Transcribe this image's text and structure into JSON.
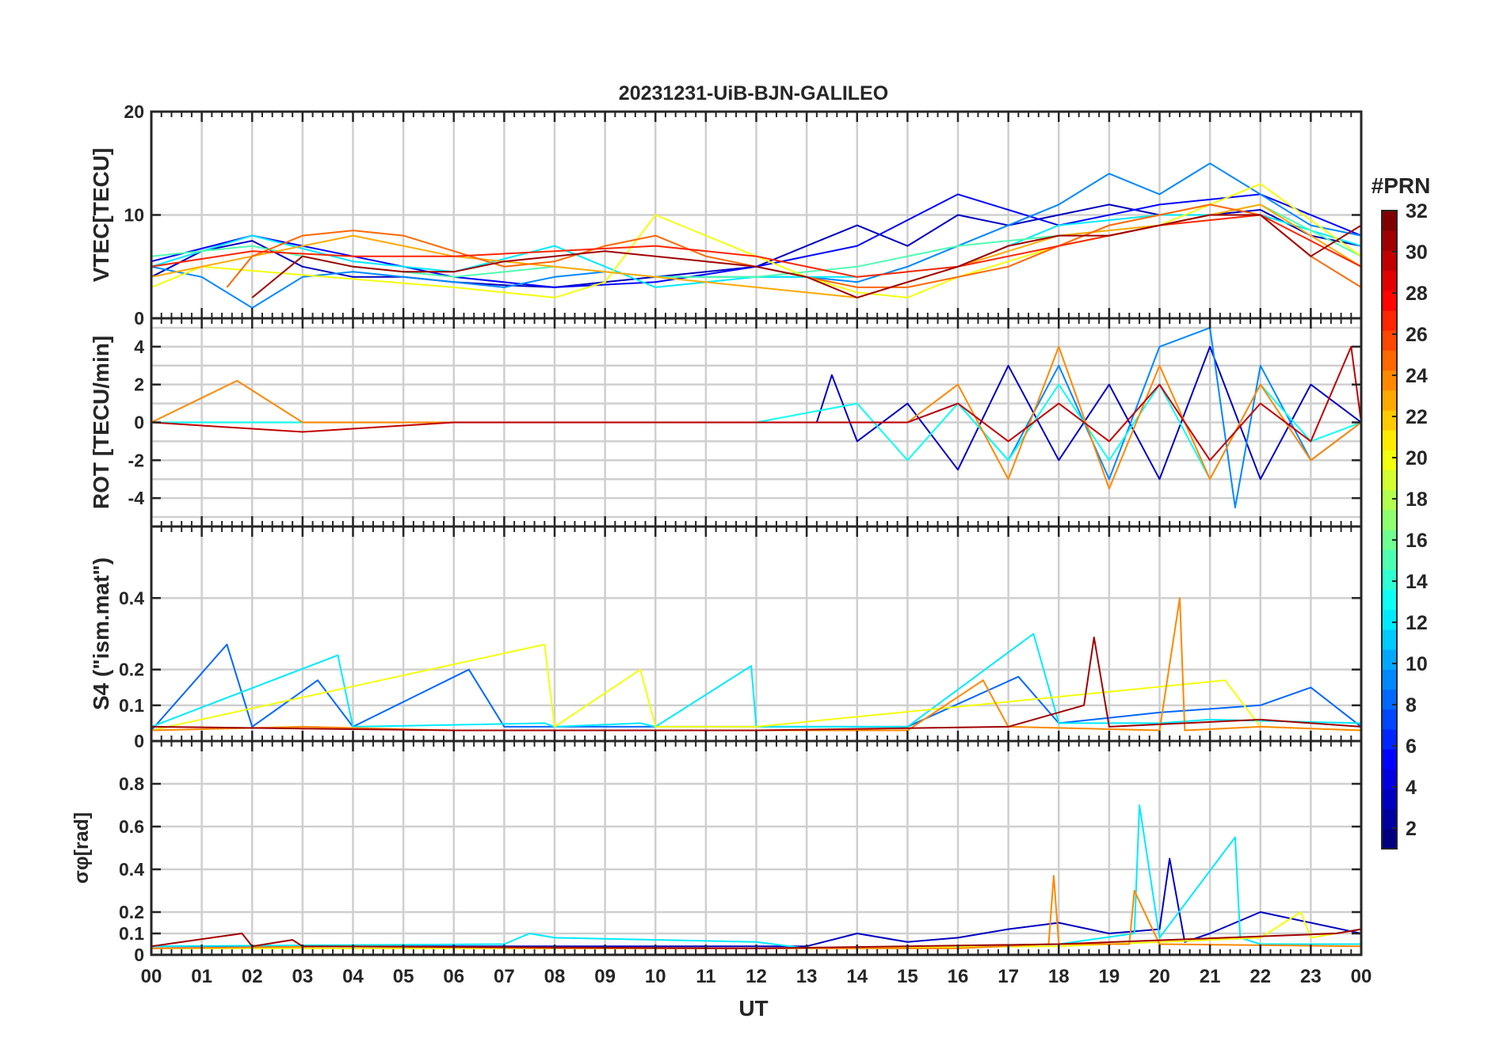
{
  "chart_data": {
    "type": "line",
    "title": "20231231-UiB-BJN-GALILEO",
    "xlabel": "UT",
    "x_ticks": [
      "00",
      "01",
      "02",
      "03",
      "04",
      "05",
      "06",
      "07",
      "08",
      "09",
      "10",
      "11",
      "12",
      "13",
      "14",
      "15",
      "16",
      "17",
      "18",
      "19",
      "20",
      "21",
      "22",
      "23",
      "00"
    ],
    "xlim": [
      0,
      24
    ],
    "grid": true,
    "colorbar": {
      "label": "#PRN",
      "range": [
        1,
        32
      ],
      "ticks": [
        "2",
        "4",
        "6",
        "8",
        "10",
        "12",
        "14",
        "16",
        "18",
        "20",
        "22",
        "24",
        "26",
        "28",
        "30",
        "32"
      ],
      "colormap": "jet",
      "levels": 32
    },
    "panels": [
      {
        "ylabel": "VTEC[TECU]",
        "ylim": [
          0,
          20
        ],
        "y_ticks": [
          "0",
          "10",
          "20"
        ],
        "y_tick_values": [
          0,
          10,
          20
        ],
        "series": [
          {
            "prn": 3,
            "x": [
              0,
              1,
              2,
              3,
              4,
              5,
              6,
              7,
              8,
              9,
              10,
              11,
              12,
              13,
              14,
              15,
              16,
              17,
              18,
              19,
              20,
              21,
              22,
              23,
              24
            ],
            "y": [
              4,
              6.5,
              7.5,
              5,
              4,
              4,
              3.5,
              3.2,
              3,
              3.5,
              4,
              4.5,
              5,
              7,
              9,
              7,
              10,
              9,
              10,
              11,
              10,
              10,
              10.5,
              8,
              7
            ]
          },
          {
            "prn": 5,
            "x": [
              0,
              2,
              4,
              6,
              8,
              10,
              12,
              14,
              16,
              18,
              20,
              22,
              24
            ],
            "y": [
              5.5,
              8,
              6,
              4,
              3,
              3.5,
              5,
              7,
              12,
              9,
              11,
              12,
              8
            ]
          },
          {
            "prn": 9,
            "x": [
              0,
              1,
              2,
              3,
              4,
              5,
              6,
              7,
              8,
              9,
              10,
              11,
              12,
              13,
              14,
              15,
              16,
              17,
              18,
              19,
              20,
              21,
              22,
              23,
              24
            ],
            "y": [
              5,
              4,
              1,
              4,
              4.5,
              4,
              3.5,
              3,
              4,
              4.5,
              4,
              4,
              4,
              4,
              3.5,
              5,
              7,
              9,
              11,
              14,
              12,
              15,
              12,
              9,
              8
            ]
          },
          {
            "prn": 12,
            "x": [
              0,
              2,
              4,
              6,
              8,
              10,
              12,
              14,
              16,
              18,
              20,
              22,
              24
            ],
            "y": [
              5,
              8,
              5.5,
              4.5,
              7,
              3,
              4,
              4,
              5,
              9,
              10,
              10,
              7
            ]
          },
          {
            "prn": 15,
            "x": [
              0,
              2,
              4,
              6,
              8,
              10,
              12,
              14,
              16,
              18,
              20,
              22,
              24
            ],
            "y": [
              6,
              7,
              5,
              4,
              5,
              4,
              4,
              5,
              7,
              8,
              9,
              11,
              6
            ]
          },
          {
            "prn": 20,
            "x": [
              0,
              1,
              6,
              8,
              9,
              10,
              11,
              12,
              13,
              14,
              15,
              16,
              18,
              20,
              22,
              24
            ],
            "y": [
              3,
              5,
              3,
              2,
              3.5,
              10,
              8,
              6,
              4,
              2.5,
              2,
              4,
              7,
              9,
              13,
              6
            ]
          },
          {
            "prn": 23,
            "x": [
              0,
              2,
              4,
              6,
              8,
              10,
              12,
              14,
              16,
              18,
              20,
              22,
              24
            ],
            "y": [
              4,
              6,
              8,
              6,
              5,
              4,
              3,
              2,
              5,
              8,
              9,
              11,
              5
            ]
          },
          {
            "prn": 25,
            "x": [
              1.5,
              2,
              3,
              4,
              5,
              6,
              7,
              8,
              9,
              10,
              11,
              12,
              13,
              14,
              15,
              16,
              17,
              18,
              19,
              20,
              21,
              22,
              23,
              24
            ],
            "y": [
              3,
              6,
              8,
              8.5,
              8,
              6.5,
              5,
              5.5,
              7,
              8,
              6,
              5,
              4,
              3,
              3,
              4,
              5,
              7,
              9,
              10,
              11,
              10,
              6,
              3
            ]
          },
          {
            "prn": 27,
            "x": [
              0,
              2,
              4,
              6,
              8,
              10,
              12,
              14,
              16,
              18,
              20,
              22,
              24
            ],
            "y": [
              5,
              6.5,
              6,
              6,
              6.5,
              7,
              6,
              4,
              5,
              7,
              9,
              10,
              5
            ]
          },
          {
            "prn": 31,
            "x": [
              2,
              3,
              4,
              5,
              6,
              7,
              8,
              9,
              10,
              11,
              12,
              13,
              14,
              15,
              16,
              17,
              18,
              19,
              20,
              21,
              22,
              23,
              24
            ],
            "y": [
              2,
              6,
              5,
              4.5,
              4.5,
              5.5,
              6,
              6.5,
              6,
              5.5,
              5,
              4,
              2,
              3.5,
              5,
              7,
              8,
              8,
              9,
              10,
              10,
              6,
              9
            ]
          }
        ]
      },
      {
        "ylabel": "ROT [TECU/min]",
        "ylim": [
          -5.5,
          5.5
        ],
        "y_ticks": [
          "-4",
          "-2",
          "0",
          "2",
          "4"
        ],
        "y_tick_values": [
          -4,
          -2,
          0,
          2,
          4
        ],
        "series": [
          {
            "prn": 3,
            "x": [
              0,
              3,
              6,
              9,
              12,
              13.2,
              13.5,
              14,
              15,
              16,
              17,
              18,
              19,
              20,
              21,
              22,
              23,
              24
            ],
            "y": [
              0,
              0,
              0,
              0,
              0,
              0,
              2.5,
              -1,
              1,
              -2.5,
              3,
              -2,
              2,
              -3,
              4,
              -3,
              2,
              0
            ]
          },
          {
            "prn": 9,
            "x": [
              0,
              3,
              6,
              9,
              12,
              15,
              16,
              17,
              18,
              19,
              20,
              21,
              21.5,
              22,
              23,
              24
            ],
            "y": [
              0,
              0,
              0,
              0,
              0,
              0,
              1,
              -2,
              3,
              -3,
              4,
              5,
              -4.5,
              3,
              -2,
              0
            ]
          },
          {
            "prn": 13,
            "x": [
              0,
              3,
              6,
              9,
              12,
              14,
              15,
              16,
              17,
              18,
              19,
              20,
              21,
              22,
              23,
              24
            ],
            "y": [
              0,
              0,
              0,
              0,
              0,
              1,
              -2,
              1,
              -2,
              2,
              -2,
              2,
              -3,
              2,
              -1,
              0
            ]
          },
          {
            "prn": 24,
            "x": [
              0,
              1.7,
              3,
              6,
              9,
              12,
              15,
              16,
              17,
              18,
              19,
              20,
              21,
              22,
              23,
              24
            ],
            "y": [
              0,
              2.2,
              0,
              0,
              0,
              0,
              0,
              2,
              -3,
              4,
              -3.5,
              3,
              -3,
              2,
              -2,
              0
            ]
          },
          {
            "prn": 30,
            "x": [
              0,
              3,
              6,
              9,
              12,
              15,
              16,
              17,
              18,
              19,
              20,
              21,
              22,
              23,
              23.8,
              24
            ],
            "y": [
              0,
              -0.5,
              0,
              0,
              0,
              0,
              1,
              -1,
              1,
              -1,
              2,
              -2,
              1,
              -1,
              4,
              0
            ]
          }
        ]
      },
      {
        "ylabel": "S4 (\"ism.mat\")",
        "ylim": [
          0,
          0.6
        ],
        "y_ticks": [
          "0",
          "0.1",
          "0.2",
          "0.4"
        ],
        "y_tick_values": [
          0,
          0.1,
          0.2,
          0.4
        ],
        "series": [
          {
            "prn": 8,
            "x": [
              0,
              1.5,
              2,
              3.3,
              4,
              6.3,
              7,
              9,
              12,
              15,
              17.2,
              18,
              20,
              22,
              23,
              24
            ],
            "y": [
              0.03,
              0.27,
              0.04,
              0.17,
              0.04,
              0.2,
              0.04,
              0.04,
              0.04,
              0.04,
              0.18,
              0.05,
              0.08,
              0.1,
              0.15,
              0.04
            ]
          },
          {
            "prn": 12,
            "x": [
              0,
              3.7,
              4,
              7.8,
              8,
              9.7,
              10,
              11.9,
              12,
              15,
              17.5,
              18,
              20,
              21,
              24
            ],
            "y": [
              0.04,
              0.24,
              0.04,
              0.05,
              0.04,
              0.05,
              0.04,
              0.21,
              0.04,
              0.04,
              0.3,
              0.05,
              0.05,
              0.06,
              0.05
            ]
          },
          {
            "prn": 20,
            "x": [
              0,
              7.8,
              8,
              9.7,
              10,
              12,
              21.3,
              22,
              24
            ],
            "y": [
              0.03,
              0.27,
              0.04,
              0.2,
              0.04,
              0.04,
              0.17,
              0.04,
              0.03
            ]
          },
          {
            "prn": 24,
            "x": [
              0,
              3,
              6,
              9,
              12,
              15,
              16.5,
              17,
              20,
              20.4,
              20.5,
              22,
              24
            ],
            "y": [
              0.03,
              0.04,
              0.03,
              0.03,
              0.03,
              0.03,
              0.17,
              0.04,
              0.03,
              0.4,
              0.03,
              0.04,
              0.03
            ]
          },
          {
            "prn": 31,
            "x": [
              0,
              6,
              12,
              17,
              18.5,
              18.7,
              19,
              22,
              24
            ],
            "y": [
              0.04,
              0.03,
              0.03,
              0.04,
              0.1,
              0.29,
              0.04,
              0.06,
              0.04
            ]
          }
        ]
      },
      {
        "ylabel": "σφ[rad]",
        "ylim": [
          0,
          1
        ],
        "y_ticks": [
          "0",
          "0.1",
          "0.2",
          "0.4",
          "0.6",
          "0.8"
        ],
        "y_tick_values": [
          0,
          0.1,
          0.2,
          0.4,
          0.6,
          0.8
        ],
        "series": [
          {
            "prn": 3,
            "x": [
              0,
              6,
              13,
              14,
              15,
              16,
              17,
              18,
              19,
              20,
              20.2,
              20.5,
              21,
              22,
              24
            ],
            "y": [
              0.04,
              0.04,
              0.04,
              0.1,
              0.06,
              0.08,
              0.12,
              0.15,
              0.1,
              0.12,
              0.45,
              0.06,
              0.1,
              0.2,
              0.1
            ]
          },
          {
            "prn": 12,
            "x": [
              0,
              7,
              7.5,
              8,
              12,
              13,
              18,
              19.5,
              19.6,
              20,
              21.5,
              21.6,
              22,
              24
            ],
            "y": [
              0.04,
              0.05,
              0.1,
              0.08,
              0.06,
              0.03,
              0.05,
              0.1,
              0.7,
              0.08,
              0.55,
              0.08,
              0.05,
              0.05
            ]
          },
          {
            "prn": 20,
            "x": [
              0,
              12,
              18,
              22,
              22.8,
              23,
              24
            ],
            "y": [
              0.03,
              0.03,
              0.04,
              0.08,
              0.2,
              0.08,
              0.12
            ]
          },
          {
            "prn": 24,
            "x": [
              0,
              4,
              8,
              12,
              16,
              17.8,
              17.9,
              18,
              19.4,
              19.5,
              20,
              24
            ],
            "y": [
              0.03,
              0.04,
              0.03,
              0.03,
              0.03,
              0.05,
              0.37,
              0.05,
              0.05,
              0.3,
              0.05,
              0.04
            ]
          },
          {
            "prn": 31,
            "x": [
              0,
              1.8,
              2,
              2.8,
              3,
              12,
              18,
              23.5,
              24
            ],
            "y": [
              0.04,
              0.1,
              0.04,
              0.07,
              0.04,
              0.03,
              0.05,
              0.1,
              0.12
            ]
          }
        ]
      }
    ]
  }
}
